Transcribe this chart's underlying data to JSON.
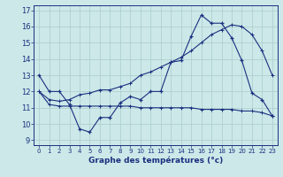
{
  "xlabel": "Graphe des températures (°c)",
  "bg_color": "#cce8e8",
  "line_color": "#1a3080",
  "grid_color": "#aacccc",
  "x_ticks": [
    0,
    1,
    2,
    3,
    4,
    5,
    6,
    7,
    8,
    9,
    10,
    11,
    12,
    13,
    14,
    15,
    16,
    17,
    18,
    19,
    20,
    21,
    22,
    23
  ],
  "y_ticks": [
    9,
    10,
    11,
    12,
    13,
    14,
    15,
    16,
    17
  ],
  "ylim": [
    8.7,
    17.3
  ],
  "xlim": [
    -0.5,
    23.5
  ],
  "series1_x": [
    0,
    1,
    2,
    3,
    4,
    5,
    6,
    7,
    8,
    9,
    10,
    11,
    12,
    13,
    14,
    15,
    16,
    17,
    18,
    19,
    20,
    21,
    22,
    23
  ],
  "series1_y": [
    13,
    12,
    12,
    11.2,
    9.7,
    9.5,
    10.4,
    10.4,
    11.3,
    11.7,
    11.5,
    12,
    12,
    13.8,
    13.9,
    15.4,
    16.7,
    16.2,
    16.2,
    15.3,
    13.9,
    11.9,
    11.5,
    10.5
  ],
  "series2_x": [
    0,
    1,
    2,
    3,
    4,
    5,
    6,
    7,
    8,
    9,
    10,
    11,
    12,
    13,
    14,
    15,
    16,
    17,
    18,
    19,
    20,
    21,
    22,
    23
  ],
  "series2_y": [
    12.0,
    11.2,
    11.1,
    11.1,
    11.1,
    11.1,
    11.1,
    11.1,
    11.1,
    11.1,
    11.0,
    11.0,
    11.0,
    11.0,
    11.0,
    11.0,
    10.9,
    10.9,
    10.9,
    10.9,
    10.8,
    10.8,
    10.7,
    10.5
  ],
  "series3_x": [
    0,
    1,
    2,
    3,
    4,
    5,
    6,
    7,
    8,
    9,
    10,
    11,
    12,
    13,
    14,
    15,
    16,
    17,
    18,
    19,
    20,
    21,
    22,
    23
  ],
  "series3_y": [
    12.0,
    11.5,
    11.4,
    11.5,
    11.8,
    11.9,
    12.1,
    12.1,
    12.3,
    12.5,
    13.0,
    13.2,
    13.5,
    13.8,
    14.1,
    14.5,
    15.0,
    15.5,
    15.8,
    16.1,
    16.0,
    15.5,
    14.5,
    13.0
  ],
  "lw": 0.8,
  "ms": 3.5,
  "tick_fontsize": 5,
  "xlabel_fontsize": 6.5
}
